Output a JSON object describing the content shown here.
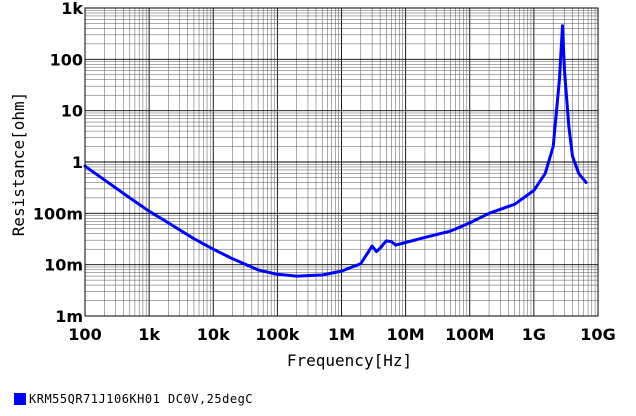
{
  "chart_data": {
    "type": "line",
    "xlabel": "Frequency[Hz]",
    "ylabel": "Resistance[ohm]",
    "x_scale": "log",
    "y_scale": "log",
    "xlim": [
      100,
      10000000000
    ],
    "ylim": [
      0.001,
      1000
    ],
    "grid": true,
    "legend_position": "bottom-left",
    "x_ticks": [
      {
        "value": 100,
        "label": "100"
      },
      {
        "value": 1000,
        "label": "1k"
      },
      {
        "value": 10000,
        "label": "10k"
      },
      {
        "value": 100000,
        "label": "100k"
      },
      {
        "value": 1000000,
        "label": "1M"
      },
      {
        "value": 10000000,
        "label": "10M"
      },
      {
        "value": 100000000,
        "label": "100M"
      },
      {
        "value": 1000000000,
        "label": "1G"
      },
      {
        "value": 10000000000,
        "label": "10G"
      }
    ],
    "y_ticks": [
      {
        "value": 0.001,
        "label": "1m"
      },
      {
        "value": 0.01,
        "label": "10m"
      },
      {
        "value": 0.1,
        "label": "100m"
      },
      {
        "value": 1,
        "label": "1"
      },
      {
        "value": 10,
        "label": "10"
      },
      {
        "value": 100,
        "label": "100"
      },
      {
        "value": 1000,
        "label": "1k"
      }
    ],
    "series": [
      {
        "name": "KRM55QR71J106KH01 DC0V,25degC",
        "color": "#0000ff",
        "points": [
          [
            100,
            0.83
          ],
          [
            200,
            0.45
          ],
          [
            500,
            0.2
          ],
          [
            1000,
            0.11
          ],
          [
            2000,
            0.065
          ],
          [
            5000,
            0.032
          ],
          [
            10000,
            0.02
          ],
          [
            20000,
            0.013
          ],
          [
            50000,
            0.0079
          ],
          [
            100000,
            0.0065
          ],
          [
            200000,
            0.006
          ],
          [
            500000,
            0.0063
          ],
          [
            1000000,
            0.0075
          ],
          [
            2000000,
            0.0105
          ],
          [
            3000000,
            0.023
          ],
          [
            3500000,
            0.018
          ],
          [
            4000000,
            0.021
          ],
          [
            5000000,
            0.029
          ],
          [
            6000000,
            0.028
          ],
          [
            7000000,
            0.024
          ],
          [
            10000000,
            0.027
          ],
          [
            20000000,
            0.034
          ],
          [
            50000000,
            0.045
          ],
          [
            100000000,
            0.065
          ],
          [
            200000000,
            0.1
          ],
          [
            500000000,
            0.15
          ],
          [
            1000000000,
            0.28
          ],
          [
            1500000000,
            0.6
          ],
          [
            2000000000,
            2.0
          ],
          [
            2500000000,
            40
          ],
          [
            2800000000,
            450
          ],
          [
            3000000000,
            60
          ],
          [
            3500000000,
            5
          ],
          [
            4000000000,
            1.3
          ],
          [
            5000000000,
            0.6
          ],
          [
            6500000000,
            0.4
          ]
        ]
      }
    ]
  }
}
